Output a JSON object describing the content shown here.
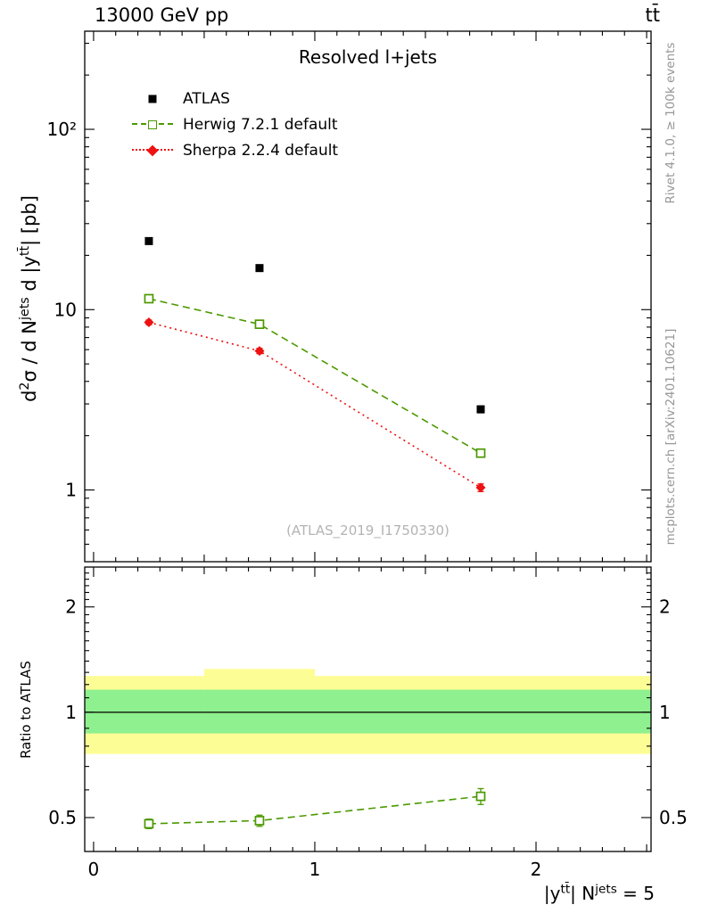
{
  "header": {
    "left": "13000 GeV pp",
    "right": "tt̄"
  },
  "plot": {
    "watermark": "(ATLAS_2019_I1750330)"
  },
  "side_notes": {
    "top_right": "Rivet 4.1.0, ≥ 100k events",
    "bottom_right": "mcplots.cern.ch [arXiv:2401.10621]"
  },
  "legend": [
    {
      "label": "ATLAS",
      "color": "#000000",
      "marker": "filled-square",
      "line": "none"
    },
    {
      "label": "Herwig 7.2.1 default",
      "color": "#4c9900",
      "marker": "open-square",
      "line": "dashed"
    },
    {
      "label": "Sherpa 2.2.4 default",
      "color": "#ee1111",
      "marker": "filled-diamond",
      "line": "dotted"
    }
  ],
  "chart_data": {
    "type": "line",
    "title": "Resolved l+jets",
    "xlabel": "|y^{tt̄}| N^{jets} = 5",
    "ylabel": "d^{2}σ / d N^{jets} d |y^{tt̄}| [pb]",
    "xlim": [
      -0.04,
      2.52
    ],
    "x_ticks": [
      {
        "value": 0,
        "label": "0"
      },
      {
        "value": 1,
        "label": "1"
      },
      {
        "value": 2,
        "label": "2"
      }
    ],
    "colors": {
      "band_outer": "#fdfd96",
      "band_inner": "#8ef08e",
      "frame": "#000000"
    },
    "main": {
      "yscale": "log",
      "ylim": [
        0.4,
        350
      ],
      "major_ticks": [
        1,
        10,
        100
      ],
      "yticks": [
        {
          "value": 100,
          "label": "10²"
        },
        {
          "value": 10,
          "label": "10"
        },
        {
          "value": 1,
          "label": "1"
        }
      ],
      "series": [
        {
          "name": "ATLAS",
          "color": "#000000",
          "marker": "filled-square",
          "line": "none",
          "x": [
            0.25,
            0.75,
            1.75
          ],
          "y": [
            24,
            17,
            2.8
          ],
          "yerr": [
            0.9,
            0.7,
            0.12
          ]
        },
        {
          "name": "Herwig 7.2.1 default",
          "color": "#4c9900",
          "marker": "open-square",
          "line": "dashed",
          "x": [
            0.25,
            0.75,
            1.75
          ],
          "y": [
            11.5,
            8.3,
            1.6
          ],
          "yerr": [
            0.3,
            0.25,
            0.06
          ]
        },
        {
          "name": "Sherpa 2.2.4 default",
          "color": "#ee1111",
          "marker": "filled-diamond",
          "line": "dotted",
          "x": [
            0.25,
            0.75,
            1.75
          ],
          "y": [
            8.5,
            5.9,
            1.03
          ],
          "yerr": [
            0.25,
            0.2,
            0.05
          ]
        }
      ]
    },
    "ratio": {
      "ylabel": "Ratio to ATLAS",
      "yscale": "log",
      "ylim": [
        0.4,
        2.6
      ],
      "major_ticks": [
        0.5,
        1,
        2
      ],
      "reference": 1,
      "yticks": [
        {
          "value": 2,
          "label": "2"
        },
        {
          "value": 1,
          "label": "1"
        },
        {
          "value": 0.5,
          "label": "0.5"
        }
      ],
      "bands": [
        {
          "x0": -0.04,
          "x1": 0.5,
          "yellow": [
            0.76,
            1.27
          ],
          "green": [
            0.87,
            1.16
          ]
        },
        {
          "x0": 0.5,
          "x1": 1.0,
          "yellow": [
            0.76,
            1.33
          ],
          "green": [
            0.87,
            1.16
          ]
        },
        {
          "x0": 1.0,
          "x1": 2.52,
          "yellow": [
            0.76,
            1.27
          ],
          "green": [
            0.87,
            1.16
          ]
        }
      ],
      "series": [
        {
          "name": "Herwig 7.2.1 default",
          "color": "#4c9900",
          "marker": "open-square",
          "line": "dashed",
          "x": [
            0.25,
            0.75,
            1.75
          ],
          "y": [
            0.48,
            0.49,
            0.575
          ],
          "yerr": [
            0.015,
            0.018,
            0.03
          ]
        }
      ]
    }
  }
}
